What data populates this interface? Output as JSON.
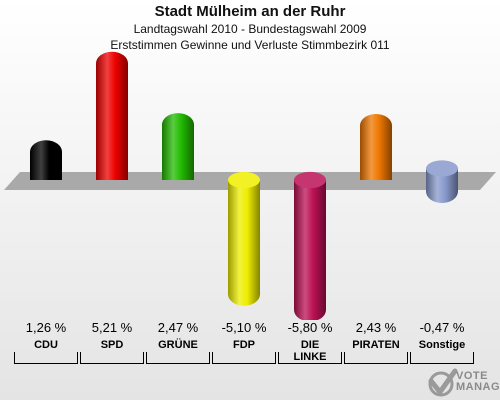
{
  "header": {
    "title": "Stadt Mülheim an der Ruhr",
    "subtitle": "Landtagswahl 2010 - Bundestagswahl 2009",
    "subtitle2": "Erststimmen Gewinne und Verluste Stimmbezirk 011"
  },
  "chart_data": {
    "type": "bar",
    "title": "Stadt Mülheim an der Ruhr",
    "categories": [
      "CDU",
      "SPD",
      "GRÜNE",
      "FDP",
      "DIE LINKE",
      "PIRATEN",
      "Sonstige"
    ],
    "values": [
      1.26,
      5.21,
      2.47,
      -5.1,
      -5.8,
      2.43,
      -0.47
    ],
    "labels": [
      "1,26 %",
      "5,21 %",
      "2,47 %",
      "-5,10 %",
      "-5,80 %",
      "2,43 %",
      "-0,47 %"
    ],
    "colors": [
      "#000000",
      "#ee0000",
      "#22bb00",
      "#eeee00",
      "#bb1155",
      "#ee7700",
      "#8899cc"
    ],
    "ylim": [
      -6.2,
      6.2
    ],
    "grid": false
  },
  "watermark": {
    "line1": "VOTE",
    "line2": "MANAGER"
  }
}
